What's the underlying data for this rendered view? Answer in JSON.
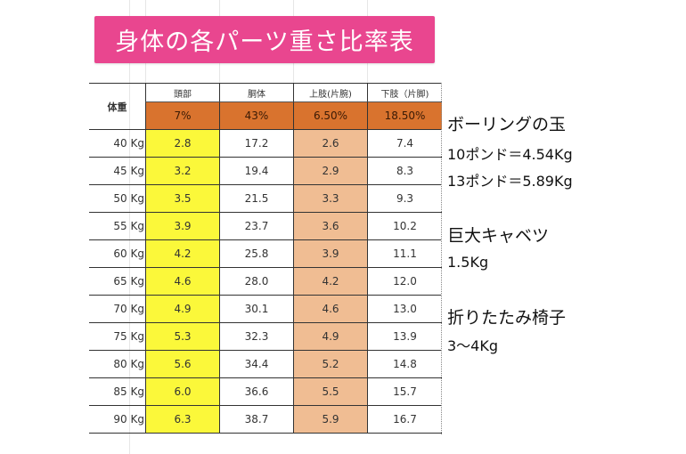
{
  "title": "身体の各パーツ重さ比率表",
  "table": {
    "weight_header": "体重",
    "columns": [
      {
        "label": "頭部",
        "percent": "7%"
      },
      {
        "label": "胴体",
        "percent": "43%"
      },
      {
        "label": "上肢(片腕)",
        "percent": "6.50%"
      },
      {
        "label": "下肢（片脚)",
        "percent": "18.50%"
      }
    ],
    "rows": [
      {
        "weight": "40 Kg",
        "head": "2.8",
        "torso": "17.2",
        "upper": "2.6",
        "lower": "7.4"
      },
      {
        "weight": "45 Kg",
        "head": "3.2",
        "torso": "19.4",
        "upper": "2.9",
        "lower": "8.3"
      },
      {
        "weight": "50 Kg",
        "head": "3.5",
        "torso": "21.5",
        "upper": "3.3",
        "lower": "9.3"
      },
      {
        "weight": "55 Kg",
        "head": "3.9",
        "torso": "23.7",
        "upper": "3.6",
        "lower": "10.2"
      },
      {
        "weight": "60 Kg",
        "head": "4.2",
        "torso": "25.8",
        "upper": "3.9",
        "lower": "11.1"
      },
      {
        "weight": "65 Kg",
        "head": "4.6",
        "torso": "28.0",
        "upper": "4.2",
        "lower": "12.0"
      },
      {
        "weight": "70 Kg",
        "head": "4.9",
        "torso": "30.1",
        "upper": "4.6",
        "lower": "13.0"
      },
      {
        "weight": "75 Kg",
        "head": "5.3",
        "torso": "32.3",
        "upper": "4.9",
        "lower": "13.9"
      },
      {
        "weight": "80 Kg",
        "head": "5.6",
        "torso": "34.4",
        "upper": "5.2",
        "lower": "14.8"
      },
      {
        "weight": "85 Kg",
        "head": "6.0",
        "torso": "36.6",
        "upper": "5.5",
        "lower": "15.7"
      },
      {
        "weight": "90 Kg",
        "head": "6.3",
        "torso": "38.7",
        "upper": "5.9",
        "lower": "16.7"
      }
    ]
  },
  "notes": [
    {
      "title": "ボーリングの玉",
      "lines": [
        "10ポンド＝4.54Kg",
        "13ポンド＝5.89Kg"
      ]
    },
    {
      "title": "巨大キャベツ",
      "lines": [
        "1.5Kg"
      ]
    },
    {
      "title": "折りたたみ椅子",
      "lines": [
        "3〜4Kg"
      ]
    }
  ],
  "colors": {
    "title_banner": "#e9468f",
    "percent_row": "#d9732e",
    "head_column": "#fbf83a",
    "upper_limb_column": "#f0bd93"
  }
}
